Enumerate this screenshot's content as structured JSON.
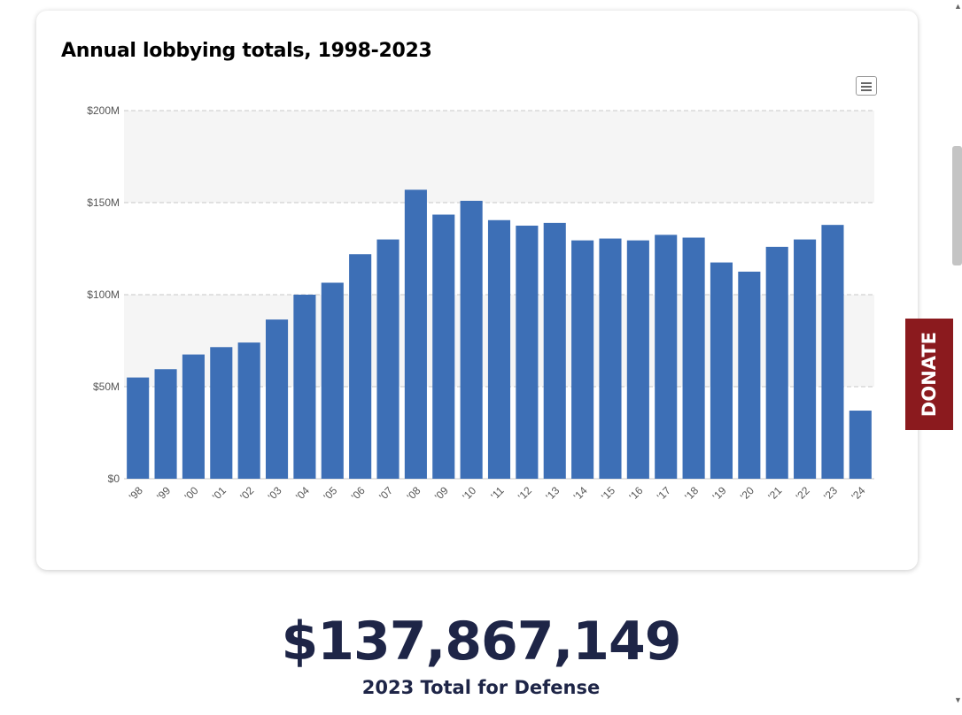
{
  "card": {
    "title": "Annual lobbying totals, 1998-2023"
  },
  "chart_data": {
    "type": "bar",
    "categories": [
      "'98",
      "'99",
      "'00",
      "'01",
      "'02",
      "'03",
      "'04",
      "'05",
      "'06",
      "'07",
      "'08",
      "'09",
      "'10",
      "'11",
      "'12",
      "'13",
      "'14",
      "'15",
      "'16",
      "'17",
      "'18",
      "'19",
      "'20",
      "'21",
      "'22",
      "'23",
      "'24"
    ],
    "values": [
      55,
      59.5,
      67.5,
      71.5,
      74,
      86.5,
      100,
      106.5,
      122,
      130,
      157,
      143.5,
      151,
      140.5,
      137.5,
      139,
      129.5,
      130.5,
      129.5,
      132.5,
      131,
      117.5,
      112.5,
      126,
      130,
      137.9,
      37
    ],
    "yticks": [
      {
        "value": 0,
        "label": "$0"
      },
      {
        "value": 50,
        "label": "$50M"
      },
      {
        "value": 100,
        "label": "$100M"
      },
      {
        "value": 150,
        "label": "$150M"
      },
      {
        "value": 200,
        "label": "$200M"
      }
    ],
    "ylim": [
      0,
      200
    ],
    "grid": true,
    "bar_color": "#3d6fb6"
  },
  "summary": {
    "amount": "$137,867,149",
    "label": "2023 Total for Defense"
  },
  "donate": {
    "label": "DONATE",
    "color": "#8b1a1e"
  }
}
